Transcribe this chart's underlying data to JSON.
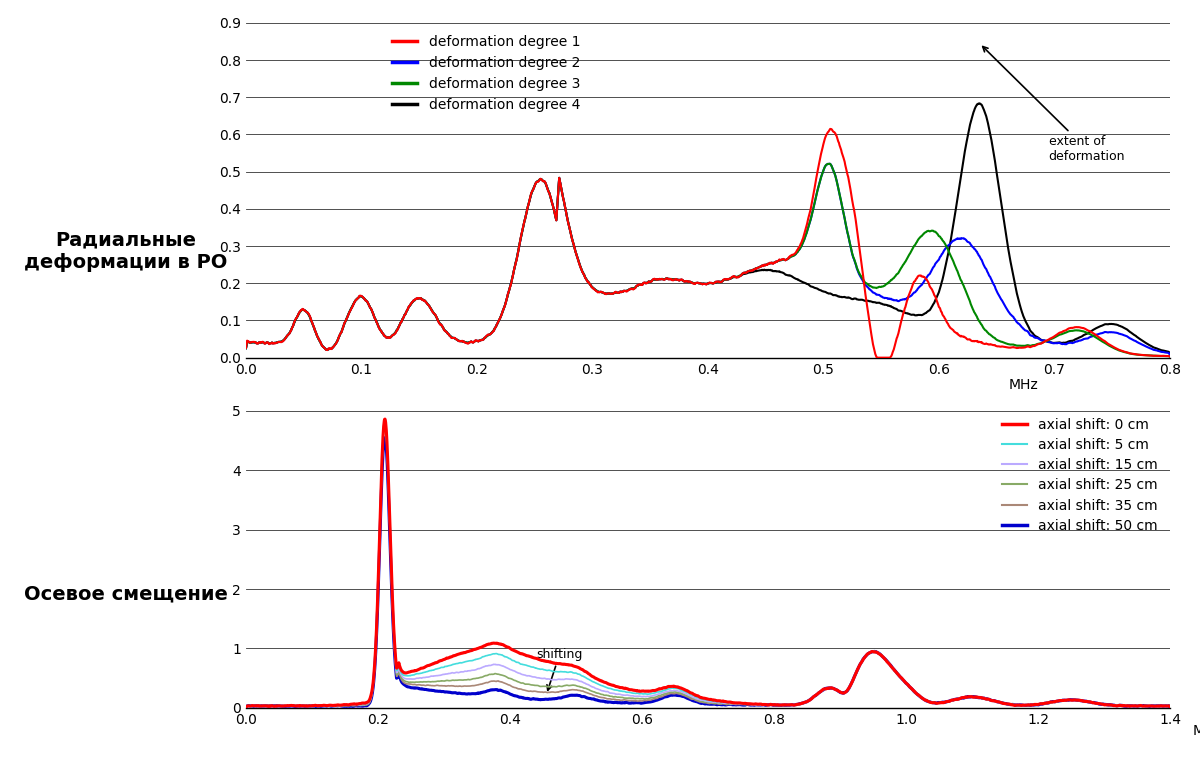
{
  "top_chart": {
    "xlim": [
      0.0,
      0.8
    ],
    "ylim": [
      0.0,
      0.9
    ],
    "yticks": [
      0.0,
      0.1,
      0.2,
      0.3,
      0.4,
      0.5,
      0.6,
      0.7,
      0.8,
      0.9
    ],
    "xticks": [
      0.0,
      0.1,
      0.2,
      0.3,
      0.4,
      0.5,
      0.6,
      0.7,
      0.8
    ],
    "xlabel": "MHz",
    "legend_labels": [
      "deformation degree 1",
      "deformation degree 2",
      "deformation degree 3",
      "deformation degree 4"
    ],
    "legend_colors": [
      "#ff0000",
      "#0000ff",
      "#008800",
      "#000000"
    ],
    "ylabel_left": "Радиальные\nдеформации в РО"
  },
  "bottom_chart": {
    "xlim": [
      0.0,
      1.4
    ],
    "ylim": [
      0.0,
      5.0
    ],
    "yticks": [
      0.0,
      1.0,
      2.0,
      3.0,
      4.0,
      5.0
    ],
    "xticks": [
      0.0,
      0.2,
      0.4,
      0.6,
      0.8,
      1.0,
      1.2,
      1.4
    ],
    "xlabel": "MHz",
    "legend_labels": [
      "axial shift: 0 cm",
      "axial shift: 5 cm",
      "axial shift: 15 cm",
      "axial shift: 25 cm",
      "axial shift: 35 cm",
      "axial shift: 50 cm"
    ],
    "legend_colors": [
      "#ff0000",
      "#44dddd",
      "#bbaaff",
      "#88aa66",
      "#aa8877",
      "#0000cc"
    ],
    "ylabel_left": "Осевое смещение"
  }
}
